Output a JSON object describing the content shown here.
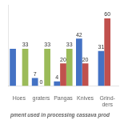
{
  "chart_data": {
    "type": "bar",
    "title": "pment used in processing cassava prod",
    "categories": [
      "Hoes",
      "graters",
      "Pangas",
      "Knives",
      "Grind-\nders"
    ],
    "series": [
      {
        "color": "#4472C4",
        "values": [
          33,
          7,
          4,
          42,
          31
        ],
        "value_labels": [
          null,
          "7",
          "4",
          "42",
          "31"
        ]
      },
      {
        "color": "#C0504D",
        "values": [
          0,
          0,
          20,
          20,
          60
        ],
        "value_labels": [
          null,
          "0",
          "20",
          "20",
          "60"
        ]
      },
      {
        "color": "#9BBB59",
        "values": [
          33,
          33,
          33,
          0,
          0
        ],
        "value_labels": [
          "33",
          "33",
          "33",
          null,
          null
        ]
      }
    ],
    "ylim": [
      0,
      72
    ],
    "grid": false,
    "data_labels": true,
    "tick_labels": "x"
  }
}
